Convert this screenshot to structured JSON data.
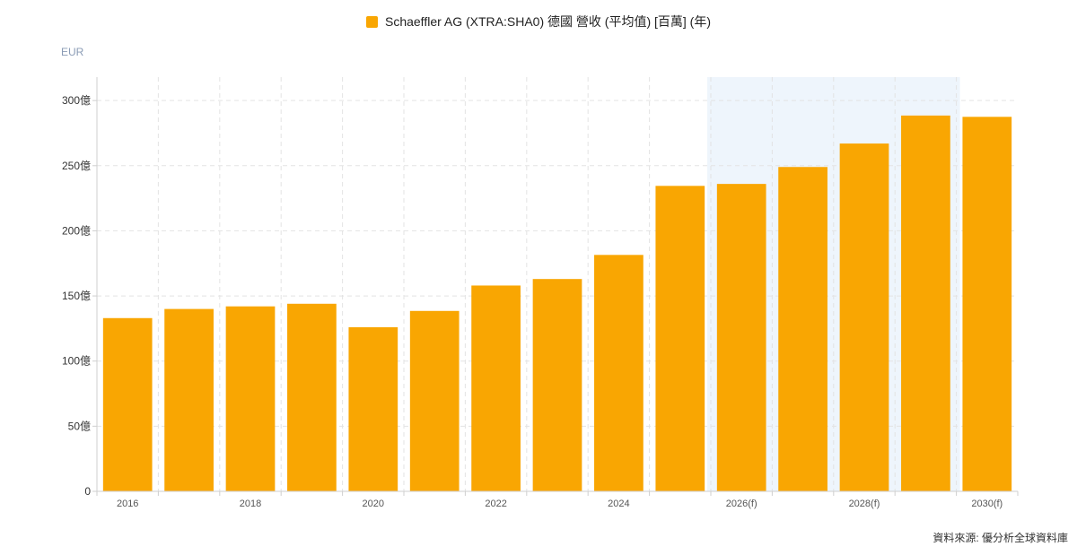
{
  "chart_data": {
    "type": "bar",
    "title": "",
    "xlabel": "",
    "ylabel": "",
    "unit_label": "EUR",
    "categories": [
      "2016",
      "2017",
      "2018",
      "2019",
      "2020",
      "2021",
      "2022",
      "2023",
      "2024",
      "2025",
      "2026(f)",
      "2027(f)",
      "2028(f)",
      "2029(f)",
      "2030(f)"
    ],
    "x_tick_labels": [
      "2016",
      "",
      "2018",
      "",
      "2020",
      "",
      "2022",
      "",
      "2024",
      "",
      "2026(f)",
      "",
      "2028(f)",
      "",
      "2030(f)"
    ],
    "series": [
      {
        "name": "Schaeffler AG (XTRA:SHA0) 德國 營收 (平均值) [百萬] (年)",
        "color": "#f9a602",
        "values": [
          133,
          140,
          142,
          144,
          126,
          138.5,
          158,
          163,
          181.5,
          234.5,
          236,
          249,
          267,
          288.5,
          287.5
        ]
      }
    ],
    "ylim": [
      0,
      318
    ],
    "y_ticks": [
      0,
      50,
      100,
      150,
      200,
      250,
      300
    ],
    "y_tick_labels": [
      "0",
      "50億",
      "100億",
      "150億",
      "200億",
      "250億",
      "300億"
    ],
    "forecast_start_index": 10,
    "forecast_shade_color": "#eef5fc",
    "grid": true,
    "legend_position": "top-center"
  },
  "source_text": "資料來源: 優分析全球資料庫"
}
